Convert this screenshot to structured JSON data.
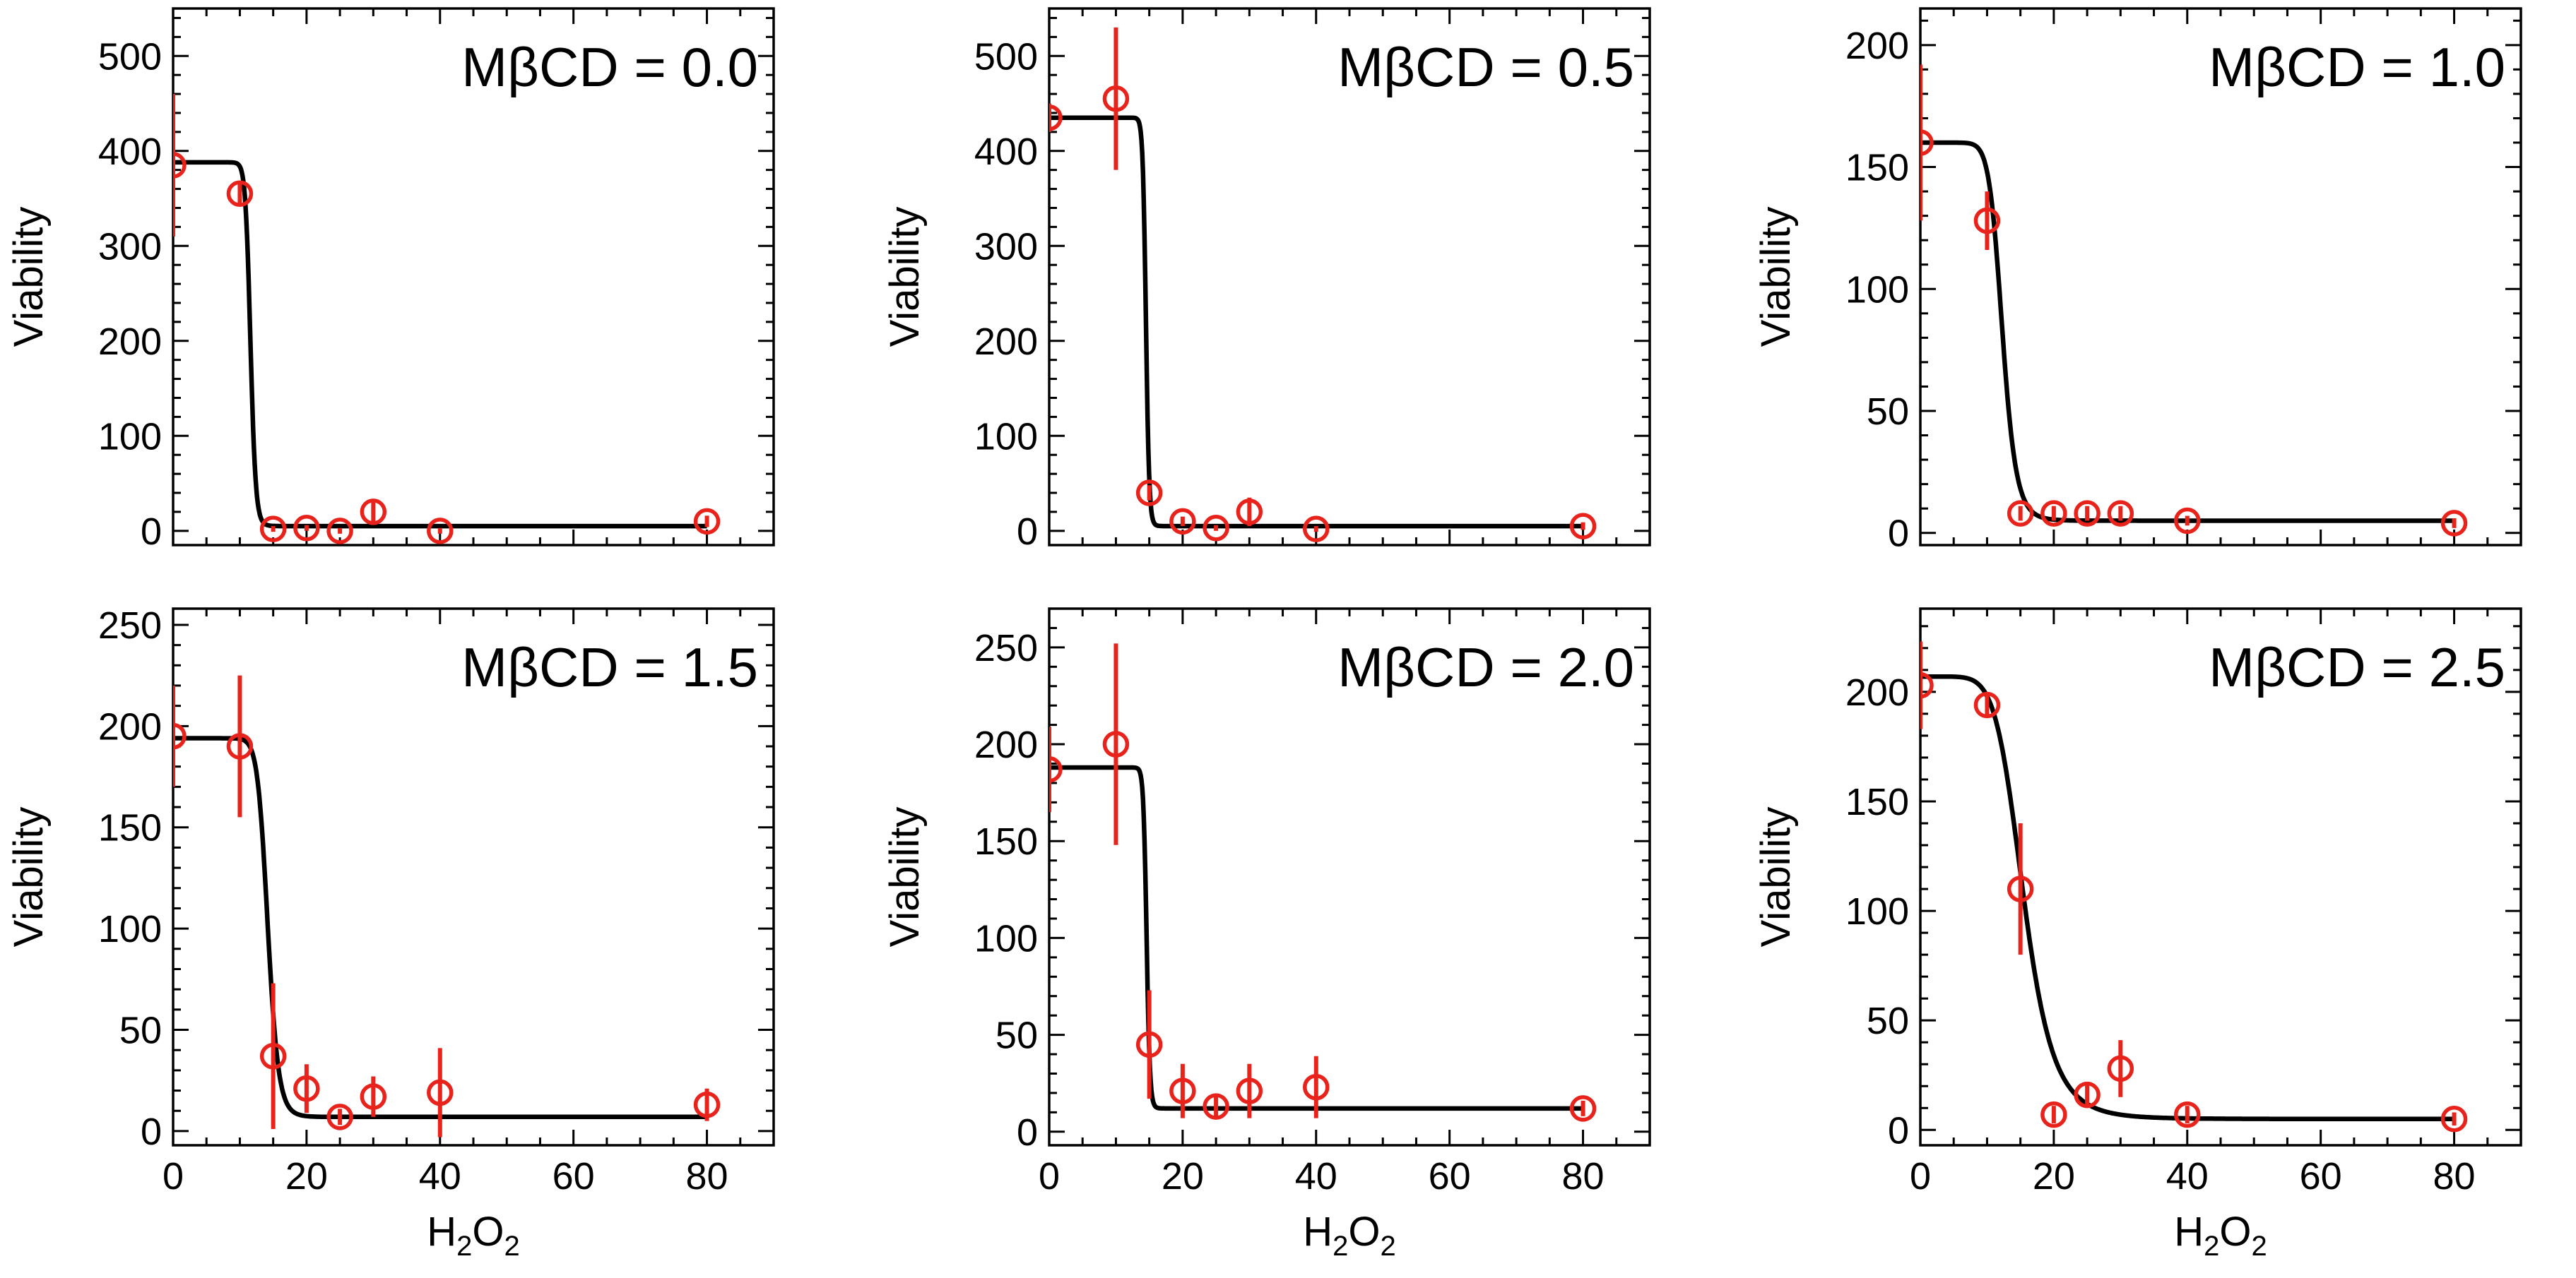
{
  "colors": {
    "data": "#e8231c",
    "fit": "#000000"
  },
  "chart_data": [
    {
      "type": "scatter",
      "title": "MβCD = 0.0",
      "xlabel": "",
      "ylabel": "Viability",
      "xlim": [
        0,
        90
      ],
      "ylim": [
        -15,
        550
      ],
      "xticks": [
        0,
        20,
        40,
        60,
        80
      ],
      "xtick_labels": [],
      "yticks": [
        0,
        100,
        200,
        300,
        400,
        500
      ],
      "ytick_labels": [
        "0",
        "100",
        "200",
        "300",
        "400",
        "500"
      ],
      "x": [
        0,
        10,
        15,
        20,
        25,
        30,
        40,
        80
      ],
      "y": [
        385,
        355,
        2,
        3,
        0,
        20,
        0,
        10
      ],
      "error": [
        75,
        10,
        3,
        3,
        3,
        12,
        3,
        6
      ],
      "fit": {
        "top": 388,
        "bottom": 5,
        "x50": 11.6,
        "slope": 30
      }
    },
    {
      "type": "scatter",
      "title": "MβCD = 0.5",
      "xlabel": "",
      "ylabel": "Viability",
      "xlim": [
        0,
        90
      ],
      "ylim": [
        -15,
        550
      ],
      "xticks": [
        0,
        20,
        40,
        60,
        80
      ],
      "xtick_labels": [],
      "yticks": [
        0,
        100,
        200,
        300,
        400,
        500
      ],
      "ytick_labels": [
        "0",
        "100",
        "200",
        "300",
        "400",
        "500"
      ],
      "x": [
        0,
        10,
        15,
        20,
        25,
        30,
        40,
        80
      ],
      "y": [
        435,
        455,
        40,
        10,
        3,
        20,
        2,
        5
      ],
      "error": [
        15,
        75,
        8,
        5,
        3,
        15,
        3,
        4
      ],
      "fit": {
        "top": 435,
        "bottom": 5,
        "x50": 14.5,
        "slope": 60
      }
    },
    {
      "type": "scatter",
      "title": "MβCD = 1.0",
      "xlabel": "",
      "ylabel": "Viability",
      "xlim": [
        0,
        90
      ],
      "ylim": [
        -5,
        215
      ],
      "xticks": [
        0,
        20,
        40,
        60,
        80
      ],
      "xtick_labels": [],
      "yticks": [
        0,
        50,
        100,
        150,
        200
      ],
      "ytick_labels": [
        "0",
        "50",
        "100",
        "150",
        "200"
      ],
      "x": [
        0,
        10,
        15,
        20,
        25,
        30,
        40,
        80
      ],
      "y": [
        160,
        128,
        8,
        8,
        8,
        8,
        5,
        4
      ],
      "error": [
        32,
        12,
        3,
        3,
        3,
        3,
        2,
        2
      ],
      "fit": {
        "top": 160,
        "bottom": 5,
        "x50": 12.3,
        "slope": 12
      }
    },
    {
      "type": "scatter",
      "title": "MβCD = 1.5",
      "xlabel": "H2O2",
      "ylabel": "Viability",
      "xlim": [
        0,
        90
      ],
      "ylim": [
        -7,
        258
      ],
      "xticks": [
        0,
        20,
        40,
        60,
        80
      ],
      "xtick_labels": [
        "0",
        "20",
        "40",
        "60",
        "80"
      ],
      "yticks": [
        0,
        50,
        100,
        150,
        200,
        250
      ],
      "ytick_labels": [
        "0",
        "50",
        "100",
        "150",
        "200",
        "250"
      ],
      "x": [
        0,
        10,
        15,
        20,
        25,
        30,
        40,
        80
      ],
      "y": [
        195,
        190,
        37,
        21,
        7,
        17,
        19,
        13
      ],
      "error": [
        25,
        35,
        36,
        12,
        4,
        10,
        22,
        8
      ],
      "fit": {
        "top": 194,
        "bottom": 7,
        "x50": 14.2,
        "slope": 18
      }
    },
    {
      "type": "scatter",
      "title": "MβCD = 2.0",
      "xlabel": "H2O2",
      "ylabel": "Viability",
      "xlim": [
        0,
        90
      ],
      "ylim": [
        -7,
        270
      ],
      "xticks": [
        0,
        20,
        40,
        60,
        80
      ],
      "xtick_labels": [
        "0",
        "20",
        "40",
        "60",
        "80"
      ],
      "yticks": [
        0,
        50,
        100,
        150,
        200,
        250
      ],
      "ytick_labels": [
        "0",
        "50",
        "100",
        "150",
        "200",
        "250"
      ],
      "x": [
        0,
        10,
        15,
        20,
        25,
        30,
        40,
        80
      ],
      "y": [
        187,
        200,
        45,
        21,
        13,
        21,
        23,
        12
      ],
      "error": [
        22,
        52,
        28,
        14,
        5,
        14,
        16,
        4
      ],
      "fit": {
        "top": 188,
        "bottom": 12,
        "x50": 14.6,
        "slope": 60
      }
    },
    {
      "type": "scatter",
      "title": "MβCD = 2.5",
      "xlabel": "H2O2",
      "ylabel": "Viability",
      "xlim": [
        0,
        90
      ],
      "ylim": [
        -7,
        238
      ],
      "xticks": [
        0,
        20,
        40,
        60,
        80
      ],
      "xtick_labels": [
        "0",
        "20",
        "40",
        "60",
        "80"
      ],
      "yticks": [
        0,
        50,
        100,
        150,
        200
      ],
      "ytick_labels": [
        "0",
        "50",
        "100",
        "150",
        "200"
      ],
      "x": [
        0,
        10,
        15,
        20,
        25,
        30,
        40,
        80
      ],
      "y": [
        203,
        194,
        110,
        7,
        16,
        28,
        7,
        5
      ],
      "error": [
        20,
        5,
        30,
        4,
        6,
        13,
        4,
        3
      ],
      "fit": {
        "top": 207,
        "bottom": 5,
        "x50": 15.5,
        "slope": 7
      }
    }
  ]
}
